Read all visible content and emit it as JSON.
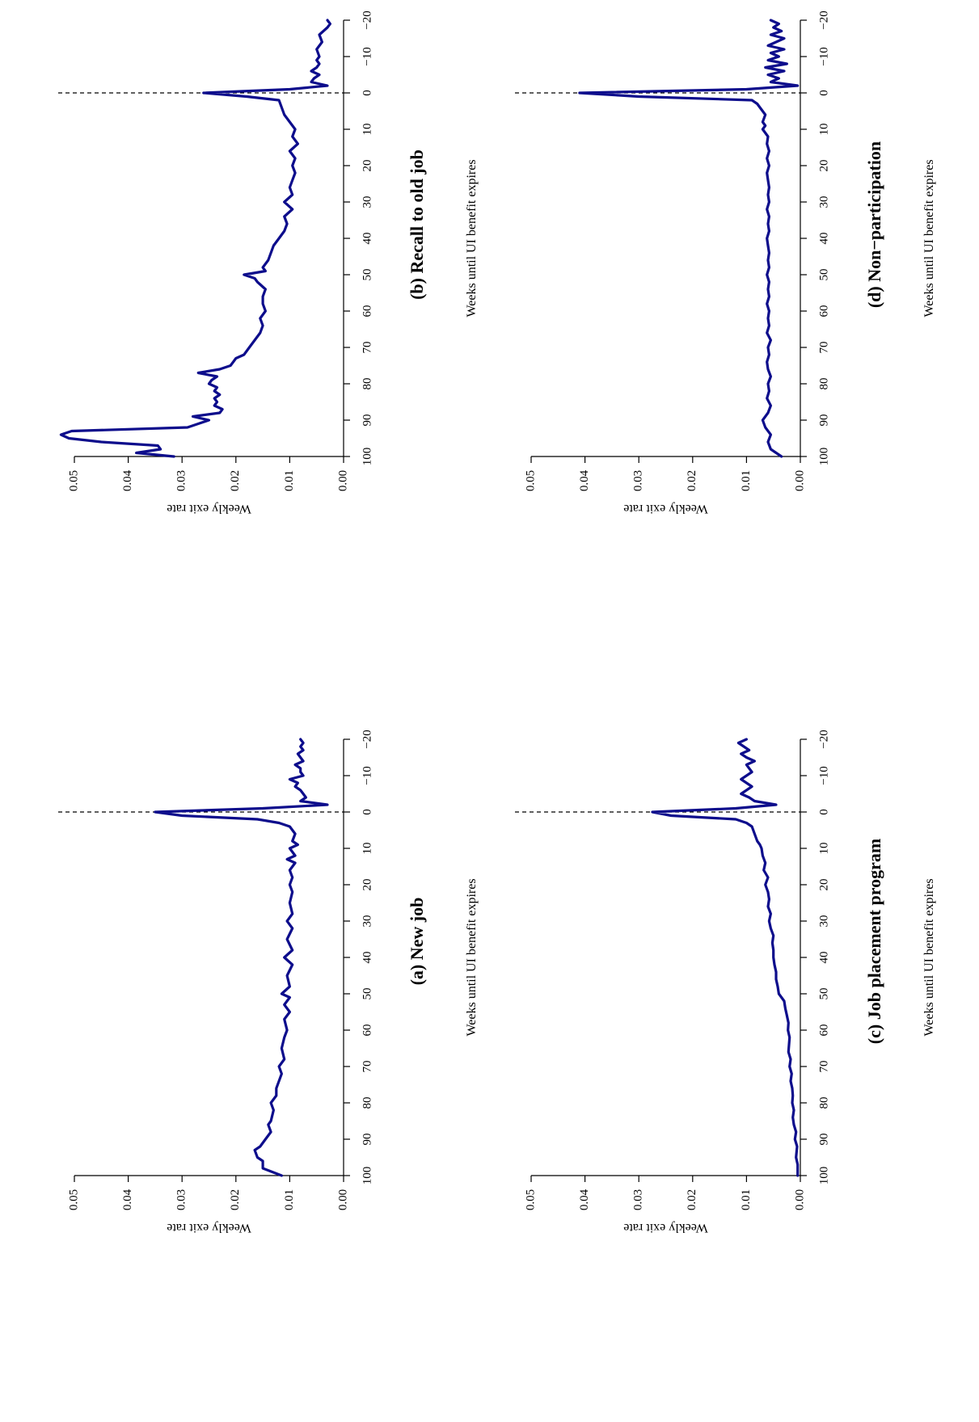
{
  "series_color": "#0d0d8c",
  "chart_data": [
    {
      "type": "line",
      "title": "(a) New job",
      "xlabel": "Weeks until UI benefit expires",
      "ylabel": "Weekly exit rate",
      "xlim": [
        100,
        -20
      ],
      "ylim": [
        0,
        0.05
      ],
      "xticks": [
        100,
        90,
        80,
        70,
        60,
        50,
        40,
        30,
        20,
        10,
        0,
        -10,
        -20
      ],
      "xtick_labels": [
        "100",
        "90",
        "80",
        "70",
        "60",
        "50",
        "40",
        "30",
        "20",
        "10",
        "0",
        "−10",
        "−20"
      ],
      "yticks": [
        0,
        0.01,
        0.02,
        0.03,
        0.04,
        0.05
      ],
      "ytick_labels": [
        "0.00",
        "0.01",
        "0.02",
        "0.03",
        "0.04",
        "0.05"
      ],
      "vline_x": 0,
      "series": [
        {
          "x": [
            100,
            98,
            96,
            95,
            93,
            92,
            90,
            88,
            86,
            85,
            82,
            80,
            78,
            76,
            74,
            72,
            70,
            68,
            65,
            62,
            60,
            57,
            55,
            53,
            51,
            50,
            48,
            45,
            42,
            40,
            38,
            35,
            32,
            30,
            28,
            25,
            22,
            20,
            18,
            16,
            14,
            13,
            12,
            10,
            9,
            8,
            6,
            4,
            3,
            2,
            1,
            0,
            -1,
            -2,
            -3,
            -4,
            -5,
            -6,
            -7,
            -8,
            -9,
            -10,
            -11,
            -12,
            -13,
            -14,
            -15,
            -16,
            -17,
            -18,
            -19,
            -20
          ],
          "y": [
            0.0115,
            0.015,
            0.015,
            0.016,
            0.0165,
            0.0155,
            0.0145,
            0.0135,
            0.014,
            0.0135,
            0.013,
            0.0135,
            0.0125,
            0.0125,
            0.012,
            0.0115,
            0.012,
            0.011,
            0.0115,
            0.011,
            0.0105,
            0.011,
            0.01,
            0.011,
            0.01,
            0.0115,
            0.01,
            0.0105,
            0.0095,
            0.011,
            0.0095,
            0.0105,
            0.0095,
            0.0105,
            0.0095,
            0.01,
            0.0095,
            0.01,
            0.0095,
            0.01,
            0.009,
            0.0105,
            0.009,
            0.01,
            0.0085,
            0.0095,
            0.009,
            0.01,
            0.012,
            0.016,
            0.03,
            0.035,
            0.015,
            0.003,
            0.008,
            0.007,
            0.0075,
            0.008,
            0.009,
            0.0085,
            0.01,
            0.0075,
            0.008,
            0.008,
            0.009,
            0.0075,
            0.008,
            0.0085,
            0.0075,
            0.008,
            0.0075,
            0.008
          ]
        }
      ]
    },
    {
      "type": "line",
      "title": "(b) Recall to old job",
      "xlabel": "Weeks until UI benefit expires",
      "ylabel": "Weekly exit rate",
      "xlim": [
        100,
        -20
      ],
      "ylim": [
        0,
        0.05
      ],
      "xticks": [
        100,
        90,
        80,
        70,
        60,
        50,
        40,
        30,
        20,
        10,
        0,
        -10,
        -20
      ],
      "xtick_labels": [
        "100",
        "90",
        "80",
        "70",
        "60",
        "50",
        "40",
        "30",
        "20",
        "10",
        "0",
        "−10",
        "−20"
      ],
      "yticks": [
        0,
        0.01,
        0.02,
        0.03,
        0.04,
        0.05
      ],
      "ytick_labels": [
        "0.00",
        "0.01",
        "0.02",
        "0.03",
        "0.04",
        "0.05"
      ],
      "vline_x": 0,
      "series": [
        {
          "x": [
            100,
            99,
            98,
            97,
            96,
            95,
            94,
            93,
            92,
            91,
            90,
            89,
            88,
            87,
            86,
            85,
            84,
            83,
            82,
            81,
            80,
            79,
            78,
            77,
            76,
            75,
            74,
            73,
            72,
            71,
            70,
            68,
            66,
            64,
            62,
            60,
            58,
            56,
            54,
            52,
            51,
            50,
            49,
            48,
            46,
            44,
            42,
            40,
            38,
            36,
            34,
            32,
            30,
            28,
            26,
            24,
            22,
            20,
            18,
            16,
            14,
            12,
            10,
            8,
            6,
            4,
            2,
            1,
            0,
            -1,
            -2,
            -3,
            -4,
            -5,
            -6,
            -7,
            -8,
            -9,
            -10,
            -12,
            -14,
            -16,
            -18,
            -19,
            -20
          ],
          "y": [
            0.0315,
            0.0385,
            0.034,
            0.0345,
            0.045,
            0.051,
            0.0525,
            0.0505,
            0.029,
            0.027,
            0.025,
            0.028,
            0.023,
            0.0225,
            0.024,
            0.0235,
            0.024,
            0.023,
            0.024,
            0.0235,
            0.025,
            0.0245,
            0.0235,
            0.027,
            0.023,
            0.021,
            0.0205,
            0.02,
            0.0185,
            0.018,
            0.0175,
            0.0165,
            0.0155,
            0.015,
            0.0155,
            0.0145,
            0.015,
            0.015,
            0.0145,
            0.016,
            0.0165,
            0.0185,
            0.0145,
            0.015,
            0.014,
            0.0135,
            0.013,
            0.012,
            0.011,
            0.0105,
            0.011,
            0.0095,
            0.011,
            0.0095,
            0.01,
            0.0095,
            0.009,
            0.0095,
            0.009,
            0.01,
            0.0085,
            0.0095,
            0.009,
            0.01,
            0.011,
            0.0115,
            0.012,
            0.018,
            0.026,
            0.01,
            0.003,
            0.006,
            0.0055,
            0.0045,
            0.006,
            0.005,
            0.0045,
            0.005,
            0.0045,
            0.005,
            0.004,
            0.0045,
            0.003,
            0.0025,
            0.003
          ]
        }
      ]
    },
    {
      "type": "line",
      "title": "(c) Job placement program",
      "xlabel": "Weeks until UI benefit expires",
      "ylabel": "Weekly exit rate",
      "xlim": [
        100,
        -20
      ],
      "ylim": [
        0,
        0.05
      ],
      "xticks": [
        100,
        90,
        80,
        70,
        60,
        50,
        40,
        30,
        20,
        10,
        0,
        -10,
        -20
      ],
      "xtick_labels": [
        "100",
        "90",
        "80",
        "70",
        "60",
        "50",
        "40",
        "30",
        "20",
        "10",
        "0",
        "−10",
        "−20"
      ],
      "yticks": [
        0,
        0.01,
        0.02,
        0.03,
        0.04,
        0.05
      ],
      "ytick_labels": [
        "0.00",
        "0.01",
        "0.02",
        "0.03",
        "0.04",
        "0.05"
      ],
      "vline_x": 0,
      "series": [
        {
          "x": [
            100,
            97,
            95,
            92,
            90,
            88,
            86,
            84,
            82,
            80,
            78,
            76,
            74,
            72,
            70,
            68,
            66,
            64,
            62,
            60,
            58,
            56,
            54,
            52,
            51,
            50,
            48,
            46,
            44,
            42,
            40,
            38,
            36,
            34,
            32,
            30,
            28,
            26,
            24,
            22,
            20,
            18,
            16,
            14,
            12,
            10,
            9,
            8,
            6,
            4,
            3,
            2,
            1,
            0,
            -1,
            -2,
            -3,
            -4,
            -5,
            -6,
            -7,
            -8,
            -9,
            -10,
            -11,
            -12,
            -13,
            -14,
            -15,
            -16,
            -17,
            -18,
            -19,
            -20
          ],
          "y": [
            0.0005,
            0.0005,
            0.0008,
            0.0006,
            0.001,
            0.0008,
            0.0012,
            0.0014,
            0.0012,
            0.0015,
            0.0014,
            0.0015,
            0.0018,
            0.0016,
            0.002,
            0.0018,
            0.0022,
            0.0021,
            0.002,
            0.0023,
            0.0022,
            0.0025,
            0.0028,
            0.003,
            0.0035,
            0.004,
            0.0042,
            0.0045,
            0.0045,
            0.0048,
            0.005,
            0.005,
            0.0052,
            0.005,
            0.0055,
            0.0058,
            0.0055,
            0.006,
            0.0058,
            0.006,
            0.0065,
            0.006,
            0.0068,
            0.0065,
            0.007,
            0.0072,
            0.0075,
            0.008,
            0.0085,
            0.009,
            0.01,
            0.012,
            0.024,
            0.0275,
            0.012,
            0.0045,
            0.0085,
            0.0095,
            0.011,
            0.01,
            0.009,
            0.01,
            0.011,
            0.01,
            0.009,
            0.0095,
            0.01,
            0.0085,
            0.01,
            0.011,
            0.0095,
            0.0105,
            0.0115,
            0.01
          ]
        }
      ]
    },
    {
      "type": "line",
      "title": "(d) Non−participation",
      "xlabel": "Weeks until UI benefit expires",
      "ylabel": "Weekly exit rate",
      "xlim": [
        100,
        -20
      ],
      "ylim": [
        0,
        0.05
      ],
      "xticks": [
        100,
        90,
        80,
        70,
        60,
        50,
        40,
        30,
        20,
        10,
        0,
        -10,
        -20
      ],
      "xtick_labels": [
        "100",
        "90",
        "80",
        "70",
        "60",
        "50",
        "40",
        "30",
        "20",
        "10",
        "0",
        "−10",
        "−20"
      ],
      "yticks": [
        0,
        0.01,
        0.02,
        0.03,
        0.04,
        0.05
      ],
      "ytick_labels": [
        "0.00",
        "0.01",
        "0.02",
        "0.03",
        "0.04",
        "0.05"
      ],
      "vline_x": 0,
      "series": [
        {
          "x": [
            100,
            98,
            96,
            94,
            92,
            90,
            88,
            86,
            84,
            82,
            80,
            78,
            76,
            74,
            72,
            70,
            68,
            66,
            64,
            62,
            60,
            58,
            56,
            54,
            52,
            50,
            48,
            46,
            44,
            42,
            40,
            38,
            36,
            34,
            32,
            30,
            28,
            26,
            24,
            22,
            20,
            18,
            16,
            14,
            12,
            10,
            9,
            8,
            6,
            4,
            3,
            2,
            1,
            0,
            -1,
            -2,
            -3,
            -4,
            -5,
            -6,
            -7,
            -8,
            -9,
            -10,
            -11,
            -12,
            -13,
            -14,
            -15,
            -16,
            -17,
            -18,
            -19,
            -20
          ],
          "y": [
            0.0035,
            0.0055,
            0.006,
            0.0055,
            0.0065,
            0.007,
            0.006,
            0.0055,
            0.0062,
            0.0058,
            0.006,
            0.0055,
            0.006,
            0.0062,
            0.0058,
            0.006,
            0.0055,
            0.0062,
            0.0058,
            0.006,
            0.0058,
            0.0062,
            0.0058,
            0.006,
            0.0058,
            0.0062,
            0.0058,
            0.006,
            0.0058,
            0.006,
            0.0062,
            0.0058,
            0.006,
            0.0058,
            0.0062,
            0.0058,
            0.006,
            0.0058,
            0.006,
            0.0062,
            0.0058,
            0.0062,
            0.0058,
            0.0062,
            0.006,
            0.007,
            0.0065,
            0.007,
            0.0065,
            0.0075,
            0.008,
            0.009,
            0.03,
            0.041,
            0.01,
            0.0005,
            0.0055,
            0.004,
            0.006,
            0.003,
            0.0065,
            0.0025,
            0.006,
            0.004,
            0.0055,
            0.003,
            0.006,
            0.0045,
            0.003,
            0.0055,
            0.0035,
            0.005,
            0.004,
            0.0055
          ]
        }
      ]
    }
  ]
}
